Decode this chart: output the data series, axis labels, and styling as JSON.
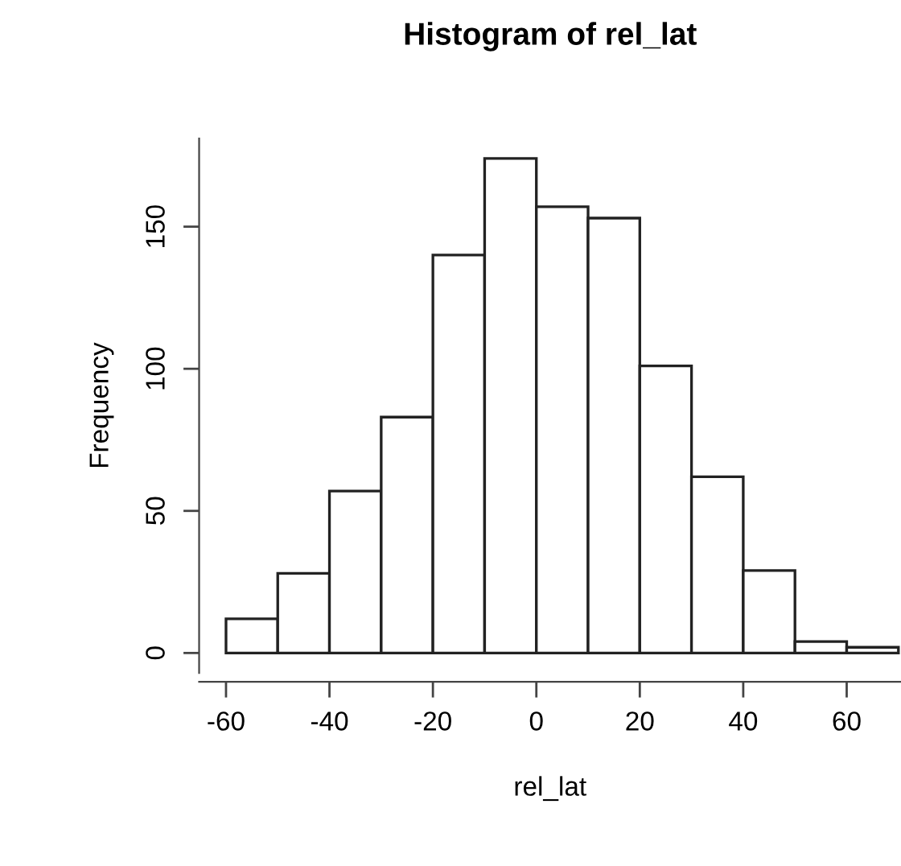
{
  "chart_data": {
    "type": "histogram",
    "title": "Histogram of rel_lat",
    "xlabel": "rel_lat",
    "ylabel": "Frequency",
    "bins": [
      -60,
      -50,
      -40,
      -30,
      -20,
      -10,
      0,
      10,
      20,
      30,
      40,
      50,
      60,
      70
    ],
    "values": [
      12,
      28,
      57,
      83,
      140,
      174,
      157,
      153,
      101,
      62,
      29,
      4,
      2
    ],
    "color": "#ffffff",
    "xlim": [
      -65.2,
      70.5
    ],
    "ylim": [
      -7,
      181
    ],
    "xticks": [
      -60,
      -40,
      -20,
      0,
      20,
      40,
      60
    ],
    "yticks": [
      0,
      50,
      100,
      150
    ],
    "grid": false
  }
}
